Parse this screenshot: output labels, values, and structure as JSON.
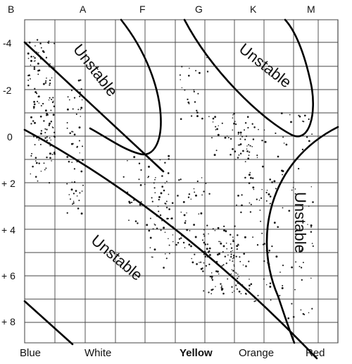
{
  "chart_data": {
    "type": "scatter",
    "title": "",
    "xlabel": "",
    "ylabel": "",
    "y_inverted": true,
    "ylim": [
      -5,
      9.5
    ],
    "x_spectral_ticks": [
      "B",
      "A",
      "F",
      "G",
      "K",
      "M"
    ],
    "x_color_labels": [
      {
        "text": "Blue",
        "bold": false
      },
      {
        "text": "White",
        "bold": false
      },
      {
        "text": "Yellow",
        "bold": true
      },
      {
        "text": "Orange",
        "bold": false
      },
      {
        "text": "Red",
        "bold": false
      }
    ],
    "y_ticks": [
      {
        "value": -4,
        "label": "-4"
      },
      {
        "value": -2,
        "label": "-2"
      },
      {
        "value": 0,
        "label": "0"
      },
      {
        "value": 2,
        "label": "+ 2"
      },
      {
        "value": 4,
        "label": "+ 4"
      },
      {
        "value": 6,
        "label": "+ 6"
      },
      {
        "value": 8,
        "label": "+ 8"
      }
    ],
    "grid": true,
    "region_labels": [
      "Unstable",
      "Unstable",
      "Unstable",
      "Unstable"
    ],
    "boundary_color": "#000000",
    "point_color": "#1a1a1a"
  }
}
